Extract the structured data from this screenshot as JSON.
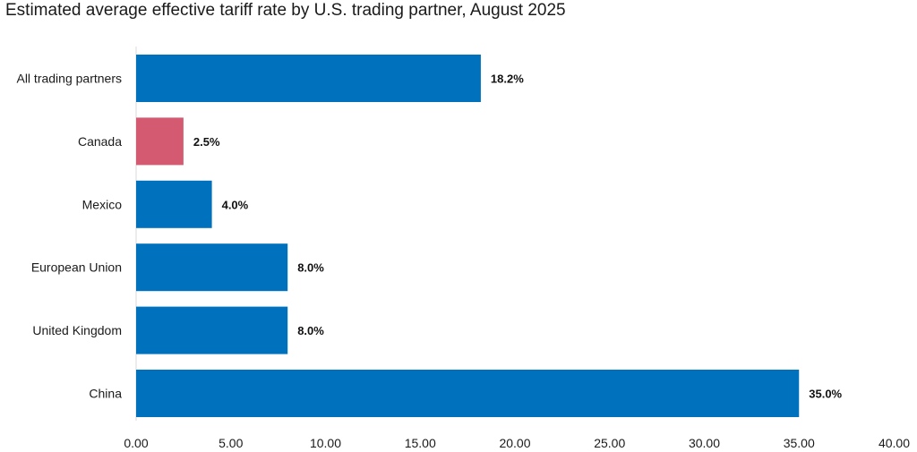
{
  "chart_data": {
    "type": "bar",
    "orientation": "horizontal",
    "title": "Estimated average effective tariff rate by U.S. trading partner, August 2025",
    "xlabel": "",
    "ylabel": "",
    "xlim": [
      0,
      40
    ],
    "ticks": [
      "0.00",
      "5.00",
      "10.00",
      "15.00",
      "20.00",
      "25.00",
      "30.00",
      "35.00",
      "40.00"
    ],
    "tick_values": [
      0,
      5,
      10,
      15,
      20,
      25,
      30,
      35,
      40
    ],
    "categories": [
      "All trading partners",
      "Canada",
      "Mexico",
      "European Union",
      "United Kingdom",
      "China"
    ],
    "values": [
      18.2,
      2.5,
      4.0,
      8.0,
      8.0,
      35.0
    ],
    "value_labels": [
      "18.2%",
      "2.5%",
      "4.0%",
      "8.0%",
      "8.0%",
      "35.0%"
    ],
    "colors": [
      "#0072bd",
      "#d45a72",
      "#0072bd",
      "#0072bd",
      "#0072bd",
      "#0072bd"
    ],
    "grid": false,
    "legend": "none"
  }
}
